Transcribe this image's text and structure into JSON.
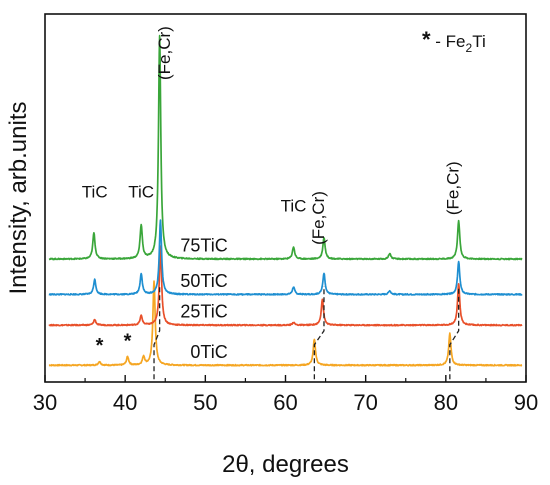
{
  "chart_data": {
    "type": "line",
    "xlabel": "2θ, degrees",
    "ylabel": "Intensity, arb.units",
    "xlim": [
      30,
      90
    ],
    "xticks": [
      30,
      40,
      50,
      60,
      70,
      80,
      90
    ],
    "tick_labels": [
      "30",
      "40",
      "50",
      "60",
      "70",
      "80",
      "90"
    ],
    "grid": false,
    "legend": {
      "symbol": "*",
      "text": " - Fe",
      "subscript": "2",
      "suffix": "Ti"
    },
    "series": [
      {
        "name": "0TiC",
        "color": "#f5a623",
        "baseline": 0,
        "peaks": [
          [
            36.8,
            0.4
          ],
          [
            40.3,
            0.9
          ],
          [
            42.3,
            0.9
          ],
          [
            43.6,
            9.0
          ],
          [
            63.6,
            2.8
          ],
          [
            80.5,
            3.4
          ]
        ]
      },
      {
        "name": "25TiC",
        "color": "#e8502a",
        "baseline": 4.3,
        "peaks": [
          [
            36.2,
            0.6
          ],
          [
            42.0,
            1.0
          ],
          [
            44.4,
            8.5
          ],
          [
            61.0,
            0.3
          ],
          [
            64.6,
            2.8
          ],
          [
            81.6,
            4.4
          ]
        ]
      },
      {
        "name": "50TiC",
        "color": "#1f8fd1",
        "baseline": 7.6,
        "peaks": [
          [
            36.2,
            1.6
          ],
          [
            42.0,
            2.2
          ],
          [
            44.4,
            8.0
          ],
          [
            61.0,
            0.8
          ],
          [
            64.8,
            2.3
          ],
          [
            73.0,
            0.4
          ],
          [
            81.6,
            3.5
          ]
        ]
      },
      {
        "name": "75TiC",
        "color": "#3aa63a",
        "baseline": 11.4,
        "peaks": [
          [
            36.1,
            2.8
          ],
          [
            42.0,
            3.6
          ],
          [
            44.3,
            24.0
          ],
          [
            61.0,
            1.3
          ],
          [
            64.8,
            2.3
          ],
          [
            73.0,
            0.6
          ],
          [
            81.6,
            4.1
          ]
        ]
      }
    ],
    "dashed_markers": [
      {
        "x_bottom": 43.6,
        "x_top": 44.3
      },
      {
        "x_bottom": 63.6,
        "x_top": 64.8
      },
      {
        "x_bottom": 80.5,
        "x_top": 81.6
      }
    ],
    "annotations": [
      {
        "text": "TiC",
        "x": 36.2,
        "y": 18.0,
        "vertical": false
      },
      {
        "text": "TiC",
        "x": 42.0,
        "y": 18.0,
        "vertical": false
      },
      {
        "text": "(Fe,Cr)",
        "x": 45.6,
        "y": 33.5,
        "vertical": true
      },
      {
        "text": "TiC",
        "x": 61.0,
        "y": 16.5,
        "vertical": false
      },
      {
        "text": "(Fe,Cr)",
        "x": 64.8,
        "y": 15.8,
        "vertical": true
      },
      {
        "text": "(Fe,Cr)",
        "x": 81.6,
        "y": 19.0,
        "vertical": true
      },
      {
        "text": "*",
        "x": 36.8,
        "y": 1.4,
        "vertical": false
      },
      {
        "text": "*",
        "x": 40.3,
        "y": 1.9,
        "vertical": false
      }
    ]
  }
}
